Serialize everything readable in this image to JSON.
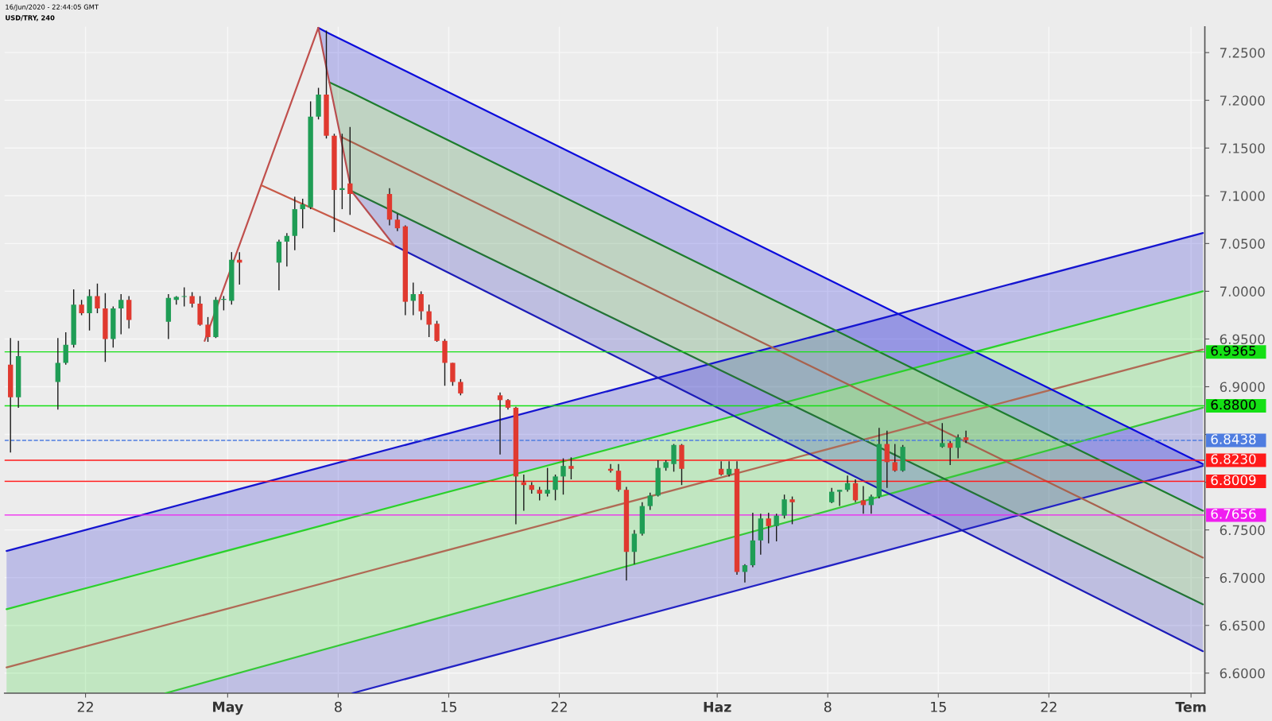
{
  "chart_data": {
    "type": "candlestick",
    "title": "USD/TRY, 240",
    "subtitle": "16/Jun/2020 - 22:44:05 GMT",
    "x": [
      "2020-04-17T06:00",
      "2020-04-17T18:00",
      "2020-04-20T06:00",
      "2020-04-20T18:00",
      "2020-04-21T06:00",
      "2020-04-21T18:00",
      "2020-04-22T06:00",
      "2020-04-22T18:00",
      "2020-04-23T06:00",
      "2020-04-23T18:00",
      "2020-04-24T06:00",
      "2020-04-24T18:00",
      "2020-04-27T06:00",
      "2020-04-27T18:00",
      "2020-04-28T06:00",
      "2020-04-28T18:00",
      "2020-04-29T06:00",
      "2020-04-29T18:00",
      "2020-04-30T06:00",
      "2020-04-30T18:00",
      "2020-05-01T06:00",
      "2020-05-01T18:00",
      "2020-05-04T06:00",
      "2020-05-04T18:00",
      "2020-05-05T06:00",
      "2020-05-05T18:00",
      "2020-05-06T06:00",
      "2020-05-06T18:00",
      "2020-05-07T06:00",
      "2020-05-07T18:00",
      "2020-05-08T06:00",
      "2020-05-08T18:00",
      "2020-05-11T06:00",
      "2020-05-11T18:00",
      "2020-05-12T06:00",
      "2020-05-12T18:00",
      "2020-05-13T06:00",
      "2020-05-13T18:00",
      "2020-05-14T06:00",
      "2020-05-14T18:00",
      "2020-05-15T06:00",
      "2020-05-15T18:00",
      "2020-05-18T06:00",
      "2020-05-18T18:00",
      "2020-05-19T06:00",
      "2020-05-19T18:00",
      "2020-05-20T06:00",
      "2020-05-20T18:00",
      "2020-05-21T06:00",
      "2020-05-21T18:00",
      "2020-05-22T06:00",
      "2020-05-22T18:00",
      "2020-05-25T06:00",
      "2020-05-25T18:00",
      "2020-05-26T06:00",
      "2020-05-26T18:00",
      "2020-05-27T06:00",
      "2020-05-27T18:00",
      "2020-05-28T06:00",
      "2020-05-28T18:00",
      "2020-05-29T06:00",
      "2020-05-29T18:00",
      "2020-06-01T06:00",
      "2020-06-01T18:00",
      "2020-06-02T06:00",
      "2020-06-02T18:00",
      "2020-06-03T06:00",
      "2020-06-03T18:00",
      "2020-06-04T06:00",
      "2020-06-04T18:00",
      "2020-06-05T06:00",
      "2020-06-05T18:00",
      "2020-06-08T06:00",
      "2020-06-08T18:00",
      "2020-06-09T06:00",
      "2020-06-09T18:00",
      "2020-06-10T06:00",
      "2020-06-10T18:00",
      "2020-06-11T06:00",
      "2020-06-11T18:00",
      "2020-06-12T06:00",
      "2020-06-12T18:00",
      "2020-06-15T06:00",
      "2020-06-15T18:00",
      "2020-06-16T06:00",
      "2020-06-16T18:00"
    ],
    "ohlc": [
      [
        6.923,
        6.951,
        6.831,
        6.889
      ],
      [
        6.889,
        6.948,
        6.878,
        6.932
      ],
      [
        6.905,
        6.951,
        6.876,
        6.925
      ],
      [
        6.925,
        6.957,
        6.923,
        6.944
      ],
      [
        6.944,
        7.002,
        6.941,
        6.986
      ],
      [
        6.986,
        6.991,
        6.975,
        6.977
      ],
      [
        6.977,
        7.002,
        6.959,
        6.995
      ],
      [
        6.995,
        7.008,
        6.977,
        6.982
      ],
      [
        6.982,
        6.998,
        6.926,
        6.95
      ],
      [
        6.95,
        6.984,
        6.941,
        6.982
      ],
      [
        6.982,
        6.997,
        6.955,
        6.991
      ],
      [
        6.991,
        6.995,
        6.961,
        6.97
      ],
      [
        6.968,
        6.997,
        6.95,
        6.993
      ],
      [
        6.991,
        6.995,
        6.986,
        6.994
      ],
      [
        6.994,
        7.004,
        6.984,
        6.995
      ],
      [
        6.995,
        6.999,
        6.983,
        6.987
      ],
      [
        6.987,
        6.995,
        6.964,
        6.965
      ],
      [
        6.965,
        6.973,
        6.947,
        6.952
      ],
      [
        6.952,
        6.994,
        6.951,
        6.991
      ],
      [
        6.991,
        6.995,
        6.98,
        6.992
      ],
      [
        6.99,
        7.041,
        6.986,
        7.033
      ],
      [
        7.033,
        7.041,
        7.007,
        7.03
      ],
      [
        7.03,
        7.054,
        7.001,
        7.052
      ],
      [
        7.052,
        7.061,
        7.026,
        7.058
      ],
      [
        7.058,
        7.099,
        7.043,
        7.086
      ],
      [
        7.086,
        7.097,
        7.066,
        7.091
      ],
      [
        7.088,
        7.199,
        7.086,
        7.183
      ],
      [
        7.183,
        7.213,
        7.18,
        7.206
      ],
      [
        7.206,
        7.273,
        7.16,
        7.163
      ],
      [
        7.163,
        7.165,
        7.062,
        7.106
      ],
      [
        7.106,
        7.165,
        7.086,
        7.108
      ],
      [
        7.113,
        7.172,
        7.08,
        7.102
      ],
      [
        7.102,
        7.108,
        7.069,
        7.075
      ],
      [
        7.075,
        7.081,
        7.063,
        7.066
      ],
      [
        7.068,
        7.069,
        6.975,
        6.989
      ],
      [
        6.99,
        7.009,
        6.975,
        6.997
      ],
      [
        6.997,
        7.0,
        6.97,
        6.979
      ],
      [
        6.979,
        6.986,
        6.952,
        6.965
      ],
      [
        6.966,
        6.969,
        6.947,
        6.948
      ],
      [
        6.948,
        6.95,
        6.901,
        6.925
      ],
      [
        6.925,
        6.925,
        6.901,
        6.905
      ],
      [
        6.905,
        6.908,
        6.891,
        6.893
      ],
      [
        6.891,
        6.894,
        6.829,
        6.886
      ],
      [
        6.886,
        6.887,
        6.876,
        6.878
      ],
      [
        6.878,
        6.879,
        6.756,
        6.806
      ],
      [
        6.8,
        6.808,
        6.77,
        6.797
      ],
      [
        6.797,
        6.8,
        6.788,
        6.792
      ],
      [
        6.792,
        6.795,
        6.781,
        6.788
      ],
      [
        6.788,
        6.815,
        6.785,
        6.792
      ],
      [
        6.792,
        6.808,
        6.781,
        6.806
      ],
      [
        6.806,
        6.825,
        6.787,
        6.817
      ],
      [
        6.817,
        6.826,
        6.803,
        6.814
      ],
      [
        6.814,
        6.819,
        6.81,
        6.812
      ],
      [
        6.812,
        6.819,
        6.79,
        6.792
      ],
      [
        6.792,
        6.795,
        6.697,
        6.727
      ],
      [
        6.727,
        6.75,
        6.714,
        6.746
      ],
      [
        6.746,
        6.779,
        6.744,
        6.775
      ],
      [
        6.775,
        6.789,
        6.771,
        6.786
      ],
      [
        6.786,
        6.823,
        6.785,
        6.815
      ],
      [
        6.815,
        6.823,
        6.812,
        6.821
      ],
      [
        6.819,
        6.84,
        6.811,
        6.839
      ],
      [
        6.839,
        6.84,
        6.797,
        6.814
      ],
      [
        6.814,
        6.822,
        6.807,
        6.808
      ],
      [
        6.808,
        6.822,
        6.806,
        6.814
      ],
      [
        6.814,
        6.822,
        6.703,
        6.706
      ],
      [
        6.706,
        6.714,
        6.695,
        6.713
      ],
      [
        6.713,
        6.768,
        6.711,
        6.739
      ],
      [
        6.739,
        6.767,
        6.724,
        6.762
      ],
      [
        6.762,
        6.768,
        6.736,
        6.754
      ],
      [
        6.754,
        6.767,
        6.738,
        6.765
      ],
      [
        6.765,
        6.787,
        6.762,
        6.782
      ],
      [
        6.782,
        6.785,
        6.756,
        6.779
      ],
      [
        6.779,
        6.794,
        6.778,
        6.79
      ],
      [
        6.79,
        6.792,
        6.775,
        6.792
      ],
      [
        6.792,
        6.807,
        6.79,
        6.799
      ],
      [
        6.799,
        6.803,
        6.779,
        6.781
      ],
      [
        6.781,
        6.796,
        6.767,
        6.776
      ],
      [
        6.776,
        6.787,
        6.767,
        6.785
      ],
      [
        6.785,
        6.857,
        6.783,
        6.84
      ],
      [
        6.84,
        6.854,
        6.794,
        6.821
      ],
      [
        6.821,
        6.84,
        6.811,
        6.812
      ],
      [
        6.812,
        6.839,
        6.811,
        6.837
      ],
      [
        6.837,
        6.862,
        6.836,
        6.841
      ],
      [
        6.841,
        6.843,
        6.818,
        6.836
      ],
      [
        6.836,
        6.85,
        6.825,
        6.847
      ],
      [
        6.847,
        6.854,
        6.841,
        6.844
      ]
    ],
    "colors": [
      "#e0392f",
      "#1f9d55",
      "#1f9d55",
      "#1f9d55",
      "#1f9d55",
      "#e0392f",
      "#1f9d55",
      "#e0392f",
      "#e0392f",
      "#1f9d55",
      "#1f9d55",
      "#e0392f",
      "#1f9d55",
      "#1f9d55",
      "#1f9d55",
      "#e0392f",
      "#e0392f",
      "#e0392f",
      "#1f9d55",
      "#1f9d55",
      "#1f9d55",
      "#e0392f",
      "#1f9d55",
      "#1f9d55",
      "#1f9d55",
      "#1f9d55",
      "#1f9d55",
      "#1f9d55",
      "#e0392f",
      "#e0392f",
      "#1f9d55",
      "#e0392f",
      "#e0392f",
      "#e0392f",
      "#e0392f",
      "#1f9d55",
      "#e0392f",
      "#e0392f",
      "#e0392f",
      "#e0392f",
      "#e0392f",
      "#e0392f",
      "#e0392f",
      "#e0392f",
      "#e0392f",
      "#e0392f",
      "#e0392f",
      "#e0392f",
      "#1f9d55",
      "#1f9d55",
      "#1f9d55",
      "#e0392f",
      "#e0392f",
      "#e0392f",
      "#e0392f",
      "#1f9d55",
      "#1f9d55",
      "#1f9d55",
      "#1f9d55",
      "#1f9d55",
      "#1f9d55",
      "#e0392f",
      "#e0392f",
      "#1f9d55",
      "#e0392f",
      "#1f9d55",
      "#1f9d55",
      "#1f9d55",
      "#e0392f",
      "#1f9d55",
      "#1f9d55",
      "#e0392f",
      "#1f9d55",
      "#1f9d55",
      "#1f9d55",
      "#e0392f",
      "#e0392f",
      "#1f9d55",
      "#1f9d55",
      "#e0392f",
      "#e0392f",
      "#1f9d55",
      "#1f9d55",
      "#e0392f",
      "#1f9d55",
      "#e0392f"
    ],
    "series": [
      {
        "type": "line",
        "x": [
          "2020-04-17T00:00",
          "2020-07-01T18:00"
        ],
        "values": [
          6.728,
          7.061
        ],
        "lower": [
          6.667,
          7.0
        ],
        "upper": [
          6.728,
          7.061
        ],
        "color": "#1515d0"
      },
      {
        "type": "line",
        "x": [
          "2020-04-17T00:00",
          "2020-04-27T01:30",
          "2020-07-01T18:00"
        ],
        "values": [
          6.667,
          6.711,
          7.0
        ],
        "lower": [
          6.579,
          6.579,
          6.878
        ],
        "upper": [
          6.667,
          6.711,
          7.0
        ],
        "color": "#2bd12b"
      },
      {
        "type": "line",
        "x": [
          "2020-04-17T00:00",
          "2020-07-01T18:00"
        ],
        "values": [
          6.606,
          6.939
        ],
        "color": "#b06a55"
      },
      {
        "type": "line",
        "x": [
          "2020-04-27T01:30",
          "2020-07-01T18:00"
        ],
        "values": [
          6.579,
          6.878
        ],
        "color": "#36c836"
      },
      {
        "type": "line",
        "x": [
          "2020-04-27T01:30",
          "2020-05-08T21:45",
          "2020-07-01T18:00"
        ],
        "values": [
          null,
          6.579,
          6.817
        ],
        "lower": [
          6.579,
          6.579,
          6.817
        ],
        "upper": [
          6.579,
          6.633,
          6.878
        ],
        "color": "#2222c4"
      },
      {
        "type": "line",
        "x": [
          "2020-05-06T17:45",
          "2020-05-07T10:30",
          "2020-07-01T18:00"
        ],
        "values": [
          7.276,
          7.27,
          6.819
        ],
        "lower": [
          7.276,
          7.219,
          6.77
        ],
        "upper": [
          7.276,
          7.27,
          6.819
        ],
        "color": "#0c0cdc"
      },
      {
        "type": "line",
        "x": [
          "2020-05-07T10:30",
          "2020-05-08T20:00",
          "2020-07-01T18:00"
        ],
        "values": [
          7.219,
          7.208,
          6.77
        ],
        "lower": [
          7.219,
          7.105,
          6.672
        ],
        "upper": [
          7.219,
          7.208,
          6.77
        ],
        "color": "#1e7d2e"
      },
      {
        "type": "line",
        "x": [
          "2020-05-08T03:30",
          "2020-07-01T18:00"
        ],
        "values": [
          7.162,
          6.721
        ],
        "color": "#a8624e"
      },
      {
        "type": "line",
        "x": [
          "2020-05-08T20:00",
          "2020-07-01T18:00"
        ],
        "values": [
          7.105,
          6.672
        ],
        "color": "#237336"
      },
      {
        "type": "line",
        "x": [
          "2020-05-08T20:00",
          "2020-05-11T13:00",
          "2020-07-01T18:00"
        ],
        "values": [
          null,
          7.048,
          6.623
        ],
        "lower": [
          7.105,
          7.048,
          6.623
        ],
        "upper": [
          7.105,
          7.083,
          6.672
        ],
        "color": "#1c1cb8"
      },
      {
        "type": "line",
        "x": [
          "2020-04-29T13:00",
          "2020-05-06T17:45"
        ],
        "values": [
          6.948,
          7.276
        ],
        "color": "#c0504d"
      },
      {
        "type": "line",
        "x": [
          "2020-05-03T03:00",
          "2020-05-11T13:00"
        ],
        "values": [
          7.111,
          7.048
        ],
        "color": "#c85a48"
      },
      {
        "type": "line",
        "x": [
          "2020-05-06T17:45",
          "2020-05-07T10:30",
          "2020-05-08T03:30",
          "2020-05-08T20:00",
          "2020-05-11T13:00"
        ],
        "values": [
          7.276,
          7.219,
          7.162,
          7.105,
          7.048
        ],
        "color": "#b84e50"
      }
    ],
    "ref_lines": [
      {
        "axis": "y",
        "value": 6.9365,
        "label": "6.9365",
        "color": "#14e014"
      },
      {
        "axis": "y",
        "value": 6.88,
        "label": "6.8800",
        "color": "#14e014"
      },
      {
        "axis": "y",
        "value": 6.8438,
        "label": "6.8438",
        "color": "#4f7de0",
        "line_style": "dashed"
      },
      {
        "axis": "y",
        "value": 6.823,
        "label": "6.8230",
        "color": "#ff1a1a"
      },
      {
        "axis": "y",
        "value": 6.8009,
        "label": "6.8009",
        "color": "#ff1a1a"
      },
      {
        "axis": "y",
        "value": 6.7656,
        "label": "6.7656",
        "color": "#f01ef0"
      }
    ],
    "xlim": [
      "2020-04-16T21:00",
      "2020-07-01T21:00"
    ],
    "xticks": [
      {
        "value": "2020-04-22",
        "label": "22"
      },
      {
        "value": "2020-05-01",
        "label": "May"
      },
      {
        "value": "2020-05-08",
        "label": "8"
      },
      {
        "value": "2020-05-15",
        "label": "15"
      },
      {
        "value": "2020-05-22",
        "label": "22"
      },
      {
        "value": "2020-06-01",
        "label": "Haz"
      },
      {
        "value": "2020-06-08",
        "label": "8"
      },
      {
        "value": "2020-06-15",
        "label": "15"
      },
      {
        "value": "2020-06-22",
        "label": "22"
      },
      {
        "value": "2020-07-01",
        "label": "Tem"
      }
    ],
    "ylim": [
      6.579,
      7.277
    ],
    "yticks": [
      {
        "value": 6.6,
        "label": "6.6000"
      },
      {
        "value": 6.65,
        "label": "6.6500"
      },
      {
        "value": 6.7,
        "label": "6.7000"
      },
      {
        "value": 6.75,
        "label": "6.7500"
      },
      {
        "value": 6.8,
        "label": null
      },
      {
        "value": 6.85,
        "label": null
      },
      {
        "value": 6.9,
        "label": "6.9000"
      },
      {
        "value": 6.95,
        "label": "6.9500"
      },
      {
        "value": 7.0,
        "label": "7.0000"
      },
      {
        "value": 7.05,
        "label": "7.0500"
      },
      {
        "value": 7.1,
        "label": "7.1000"
      },
      {
        "value": 7.15,
        "label": "7.1500"
      },
      {
        "value": 7.2,
        "label": "7.2000"
      },
      {
        "value": 7.25,
        "label": "7.2500"
      }
    ],
    "grid": true
  }
}
